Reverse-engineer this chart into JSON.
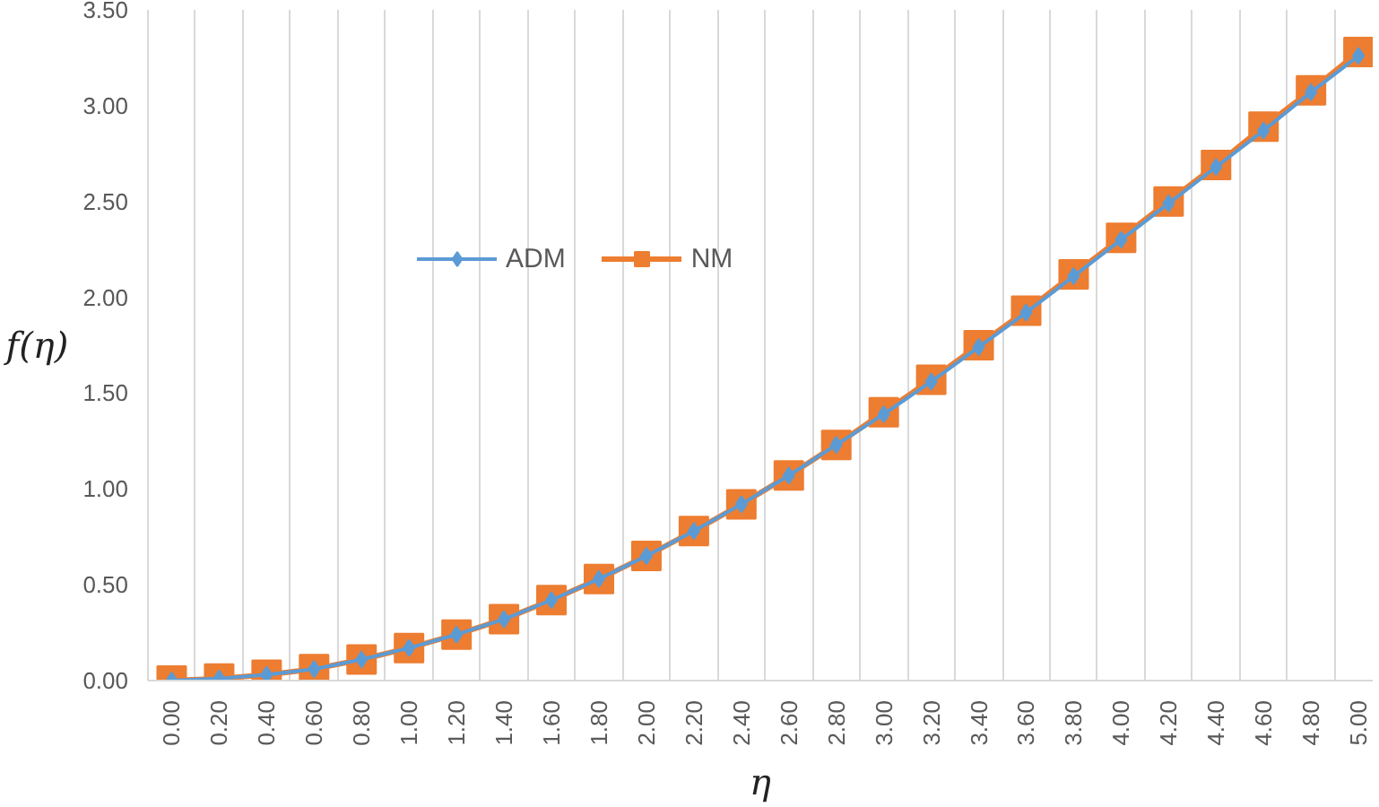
{
  "chart_data": {
    "type": "line",
    "xlabel": "η",
    "ylabel": "f(η)",
    "categories": [
      "0.00",
      "0.20",
      "0.40",
      "0.60",
      "0.80",
      "1.00",
      "1.20",
      "1.40",
      "1.60",
      "1.80",
      "2.00",
      "2.20",
      "2.40",
      "2.60",
      "2.80",
      "3.00",
      "3.20",
      "3.40",
      "3.60",
      "3.80",
      "4.00",
      "4.20",
      "4.40",
      "4.60",
      "4.80",
      "5.00"
    ],
    "series": [
      {
        "name": "ADM",
        "color": "#5b9bd5",
        "marker": "diamond",
        "values": [
          0.0,
          0.01,
          0.03,
          0.06,
          0.11,
          0.17,
          0.24,
          0.32,
          0.42,
          0.53,
          0.65,
          0.78,
          0.92,
          1.07,
          1.23,
          1.39,
          1.56,
          1.74,
          1.92,
          2.11,
          2.3,
          2.49,
          2.68,
          2.87,
          3.07,
          3.26
        ]
      },
      {
        "name": "NM",
        "color": "#ed7d31",
        "marker": "square",
        "values": [
          0.0,
          0.01,
          0.03,
          0.06,
          0.11,
          0.17,
          0.24,
          0.32,
          0.42,
          0.53,
          0.65,
          0.78,
          0.92,
          1.07,
          1.23,
          1.4,
          1.57,
          1.75,
          1.93,
          2.12,
          2.31,
          2.5,
          2.69,
          2.89,
          3.08,
          3.28
        ]
      }
    ],
    "ylim": [
      0,
      3.5
    ],
    "yticks": [
      {
        "value": 0,
        "label": "0.00"
      },
      {
        "value": 0.5,
        "label": "0.50"
      },
      {
        "value": 1,
        "label": "1.00"
      },
      {
        "value": 1.5,
        "label": "1.50"
      },
      {
        "value": 2,
        "label": "2.00"
      },
      {
        "value": 2.5,
        "label": "2.50"
      },
      {
        "value": 3,
        "label": "3.00"
      },
      {
        "value": 3.5,
        "label": "3.50"
      }
    ],
    "grid": "x",
    "legend": "top",
    "line_style": "solid"
  }
}
